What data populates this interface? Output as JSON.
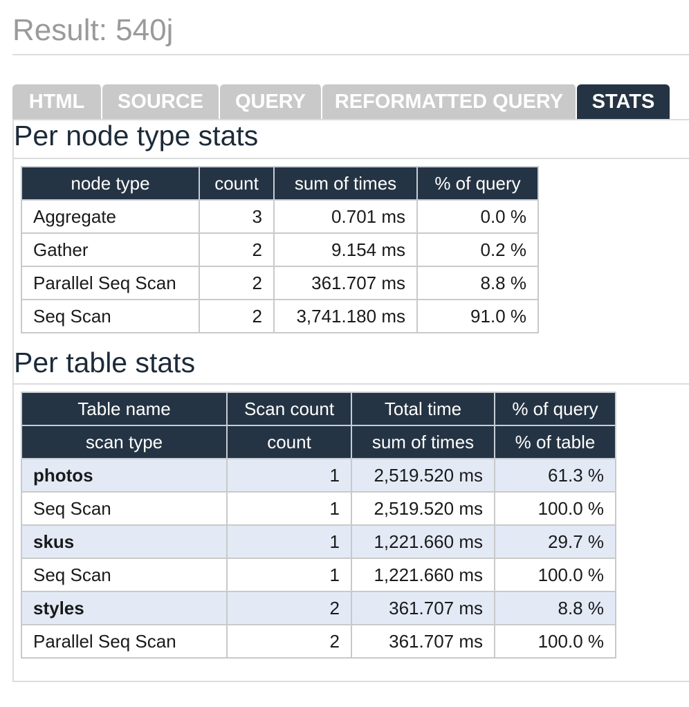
{
  "header": {
    "title": "Result: 540j"
  },
  "tabs": [
    {
      "label": "HTML",
      "active": false
    },
    {
      "label": "SOURCE",
      "active": false
    },
    {
      "label": "QUERY",
      "active": false
    },
    {
      "label": "REFORMATTED QUERY",
      "active": false
    },
    {
      "label": "STATS",
      "active": true
    }
  ],
  "colors": {
    "header_bg": "#253444",
    "tab_inactive_bg": "#c9c9c9",
    "group_row_bg": "#e3eaf6",
    "title_gray": "#9a9a9a"
  },
  "node_stats": {
    "title": "Per node type stats",
    "columns": [
      "node type",
      "count",
      "sum of times",
      "% of query"
    ],
    "rows": [
      [
        "Aggregate",
        "3",
        "0.701 ms",
        "0.0 %"
      ],
      [
        "Gather",
        "2",
        "9.154 ms",
        "0.2 %"
      ],
      [
        "Parallel Seq Scan",
        "2",
        "361.707 ms",
        "8.8 %"
      ],
      [
        "Seq Scan",
        "2",
        "3,741.180 ms",
        "91.0 %"
      ]
    ]
  },
  "table_stats": {
    "title": "Per table stats",
    "header_row1": [
      "Table name",
      "Scan count",
      "Total time",
      "% of query"
    ],
    "header_row2": [
      "scan type",
      "count",
      "sum of times",
      "% of table"
    ],
    "groups": [
      {
        "name": "photos",
        "count": "1",
        "time": "2,519.520 ms",
        "pct": "61.3 %",
        "scans": [
          {
            "type": "Seq Scan",
            "count": "1",
            "time": "2,519.520 ms",
            "pct": "100.0 %"
          }
        ]
      },
      {
        "name": "skus",
        "count": "1",
        "time": "1,221.660 ms",
        "pct": "29.7 %",
        "scans": [
          {
            "type": "Seq Scan",
            "count": "1",
            "time": "1,221.660 ms",
            "pct": "100.0 %"
          }
        ]
      },
      {
        "name": "styles",
        "count": "2",
        "time": "361.707 ms",
        "pct": "8.8 %",
        "scans": [
          {
            "type": "Parallel Seq Scan",
            "count": "2",
            "time": "361.707 ms",
            "pct": "100.0 %"
          }
        ]
      }
    ]
  }
}
